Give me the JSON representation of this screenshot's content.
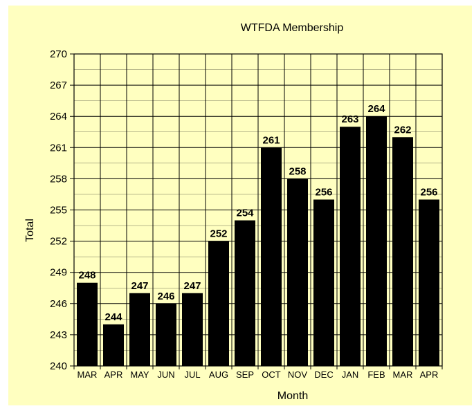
{
  "chart_data": {
    "type": "bar",
    "title": "WTFDA Membership",
    "xlabel": "Month",
    "ylabel": "Total",
    "categories": [
      "MAR",
      "APR",
      "MAY",
      "JUN",
      "JUL",
      "AUG",
      "SEP",
      "OCT",
      "NOV",
      "DEC",
      "JAN",
      "FEB",
      "MAR",
      "APR"
    ],
    "values": [
      248,
      244,
      247,
      246,
      247,
      252,
      254,
      261,
      258,
      256,
      263,
      264,
      262,
      256
    ],
    "ylim": [
      240,
      270
    ],
    "yticks": [
      240,
      243,
      246,
      249,
      252,
      255,
      258,
      261,
      264,
      267,
      270
    ],
    "minor_grid_step": 1.5,
    "grid": true,
    "legend": "none",
    "data_labels": true,
    "colors": {
      "background": "#ffffc0",
      "bar": "#000000",
      "grid": "#000000"
    }
  }
}
